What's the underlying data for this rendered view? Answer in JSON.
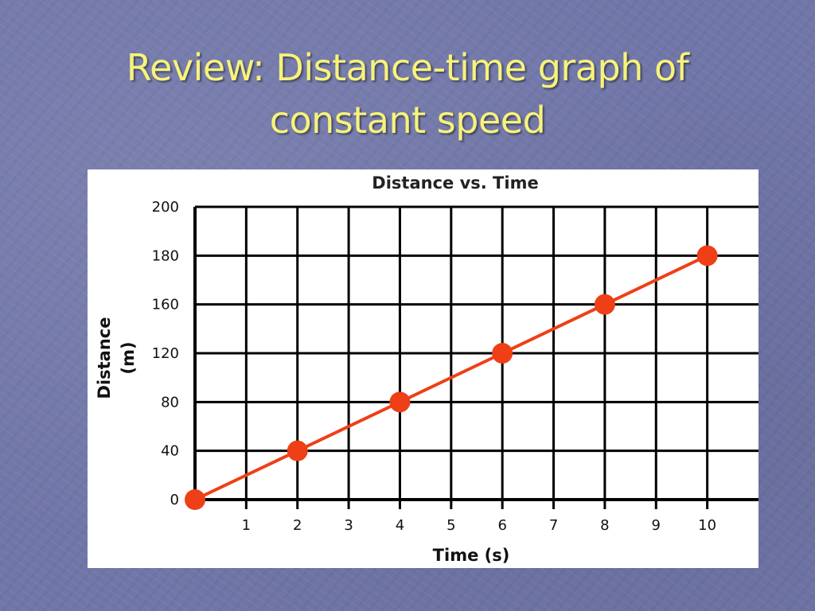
{
  "slide": {
    "title_line1": "Review: Distance-time graph of",
    "title_line2": "constant speed"
  },
  "colors": {
    "background": "#7076a8",
    "title_text": "#f7f37a",
    "series": "#ee3f16",
    "grid": "#000000"
  },
  "chart_data": {
    "type": "line",
    "title": "Distance vs. Time",
    "xlabel": "Time (s)",
    "ylabel": "Distance (m)",
    "ylabel_lines": [
      "Distance",
      "(m)"
    ],
    "xlim": [
      0,
      11
    ],
    "ylim": [
      0,
      200
    ],
    "x_ticks": [
      1,
      2,
      3,
      4,
      5,
      6,
      7,
      8,
      9,
      10
    ],
    "y_ticks": [
      0,
      40,
      80,
      120,
      160,
      180,
      200
    ],
    "grid": true,
    "markers": true,
    "series": [
      {
        "x": [
          0,
          2,
          4,
          6,
          8,
          10
        ],
        "y": [
          0,
          40,
          80,
          120,
          160,
          180
        ]
      }
    ]
  }
}
